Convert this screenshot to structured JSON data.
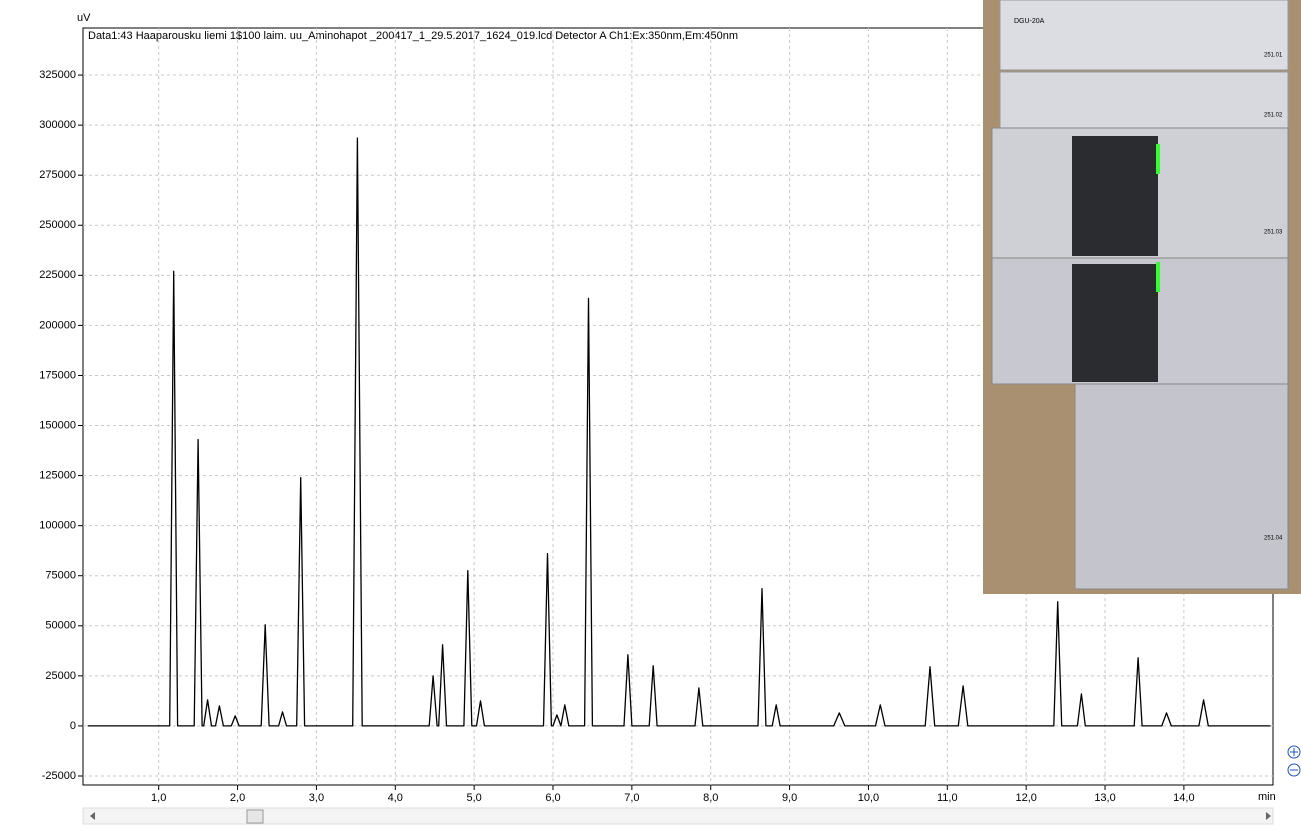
{
  "chart_data": {
    "type": "line",
    "title": "Data1:43 Haaparousku liemi 1$100 laim. uu_Aminohapot _200417_1_29.5.2017_1624_019.lcd Detector A Ch1:Ex:350nm,Em:450nm",
    "y_label": "uV",
    "x_label": "min",
    "x": [
      0.1,
      1.14,
      1.19,
      1.24,
      1.45,
      1.5,
      1.55,
      1.57,
      1.62,
      1.67,
      1.72,
      1.77,
      1.82,
      1.92,
      1.97,
      2.02,
      2.3,
      2.35,
      2.4,
      2.52,
      2.57,
      2.62,
      2.75,
      2.8,
      2.85,
      3.46,
      3.52,
      3.58,
      4.43,
      4.48,
      4.53,
      4.55,
      4.6,
      4.65,
      4.87,
      4.92,
      4.97,
      5.03,
      5.08,
      5.13,
      5.88,
      5.93,
      5.98,
      6.0,
      6.05,
      6.1,
      6.15,
      6.2,
      6.4,
      6.45,
      6.5,
      6.9,
      6.95,
      7.0,
      7.22,
      7.27,
      7.32,
      7.8,
      7.85,
      7.9,
      8.6,
      8.65,
      8.7,
      8.78,
      8.83,
      8.88,
      9.56,
      9.63,
      9.7,
      10.09,
      10.15,
      10.21,
      10.72,
      10.78,
      10.84,
      11.14,
      11.2,
      11.26,
      12.35,
      12.4,
      12.45,
      12.65,
      12.7,
      12.75,
      13.37,
      13.42,
      13.47,
      13.72,
      13.78,
      13.84,
      14.19,
      14.25,
      14.31,
      15.1
    ],
    "series": [
      {
        "color": "#000000",
        "values": [
          0,
          0,
          227000,
          0,
          0,
          143000,
          0,
          0,
          13000,
          0,
          0,
          10000,
          0,
          0,
          5000,
          0,
          0,
          50500,
          0,
          0,
          7000,
          0,
          0,
          124000,
          0,
          0,
          293500,
          0,
          0,
          25000,
          0,
          0,
          40500,
          0,
          0,
          77500,
          0,
          0,
          12500,
          0,
          0,
          86000,
          0,
          0,
          5500,
          0,
          10500,
          0,
          0,
          213500,
          0,
          0,
          35500,
          0,
          0,
          30000,
          0,
          0,
          19000,
          0,
          0,
          68500,
          0,
          0,
          10500,
          0,
          0,
          6500,
          0,
          0,
          10500,
          0,
          0,
          29500,
          0,
          0,
          20000,
          0,
          0,
          62000,
          0,
          0,
          16000,
          0,
          0,
          34000,
          0,
          0,
          6500,
          0,
          0,
          13000,
          0,
          0
        ]
      }
    ],
    "xlim": [
      0.04,
      15.13
    ],
    "ylim": [
      -29500,
      348500
    ],
    "xticks": [
      {
        "value": 1,
        "label": "1,0"
      },
      {
        "value": 2,
        "label": "2,0"
      },
      {
        "value": 3,
        "label": "3,0"
      },
      {
        "value": 4,
        "label": "4,0"
      },
      {
        "value": 5,
        "label": "5,0"
      },
      {
        "value": 6,
        "label": "6,0"
      },
      {
        "value": 7,
        "label": "7,0"
      },
      {
        "value": 8,
        "label": "8,0"
      },
      {
        "value": 9,
        "label": "9,0"
      },
      {
        "value": 10,
        "label": "10,0"
      },
      {
        "value": 11,
        "label": "11,0"
      },
      {
        "value": 12,
        "label": "12,0"
      },
      {
        "value": 13,
        "label": "13,0"
      },
      {
        "value": 14,
        "label": "14,0"
      }
    ],
    "yticks": [
      -25000,
      0,
      25000,
      50000,
      75000,
      100000,
      125000,
      150000,
      175000,
      200000,
      225000,
      250000,
      275000,
      300000,
      325000
    ],
    "grid": true
  },
  "inset": {
    "labels": [
      "DGU-20A",
      "251.01",
      "251.02",
      "251.03",
      "251.04"
    ]
  }
}
